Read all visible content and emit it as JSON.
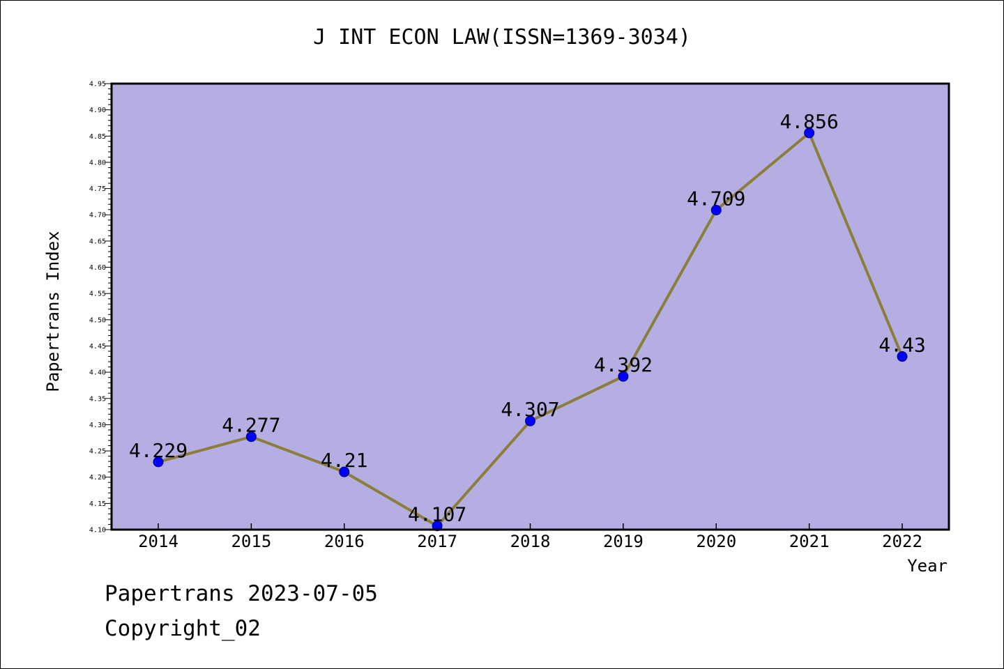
{
  "chart_data": {
    "type": "line",
    "title": "J INT ECON LAW(ISSN=1369-3034)",
    "xlabel": "Year",
    "ylabel": "Papertrans Index",
    "categories": [
      "2014",
      "2015",
      "2016",
      "2017",
      "2018",
      "2019",
      "2020",
      "2021",
      "2022"
    ],
    "series": [
      {
        "values": [
          4.229,
          4.277,
          4.21,
          4.107,
          4.307,
          4.392,
          4.709,
          4.856,
          4.43
        ],
        "value_labels": [
          "4.229",
          "4.277",
          "4.21",
          "4.107",
          "4.307",
          "4.392",
          "4.709",
          "4.856",
          "4.43"
        ]
      }
    ],
    "ylim": [
      4.1,
      4.95
    ],
    "y_ticks": [
      "4.10",
      "4.15",
      "4.20",
      "4.25",
      "4.30",
      "4.35",
      "4.40",
      "4.45",
      "4.50",
      "4.55",
      "4.60",
      "4.65",
      "4.70",
      "4.75",
      "4.80",
      "4.85",
      "4.90",
      "4.95"
    ],
    "grid": false,
    "colors": {
      "plot_background": "#b4aee2",
      "line": "#8b7d3a",
      "marker": "#0000ff",
      "axis": "#000000"
    }
  },
  "footer": {
    "line1": "Papertrans 2023-07-05",
    "line2": "Copyright_02"
  }
}
